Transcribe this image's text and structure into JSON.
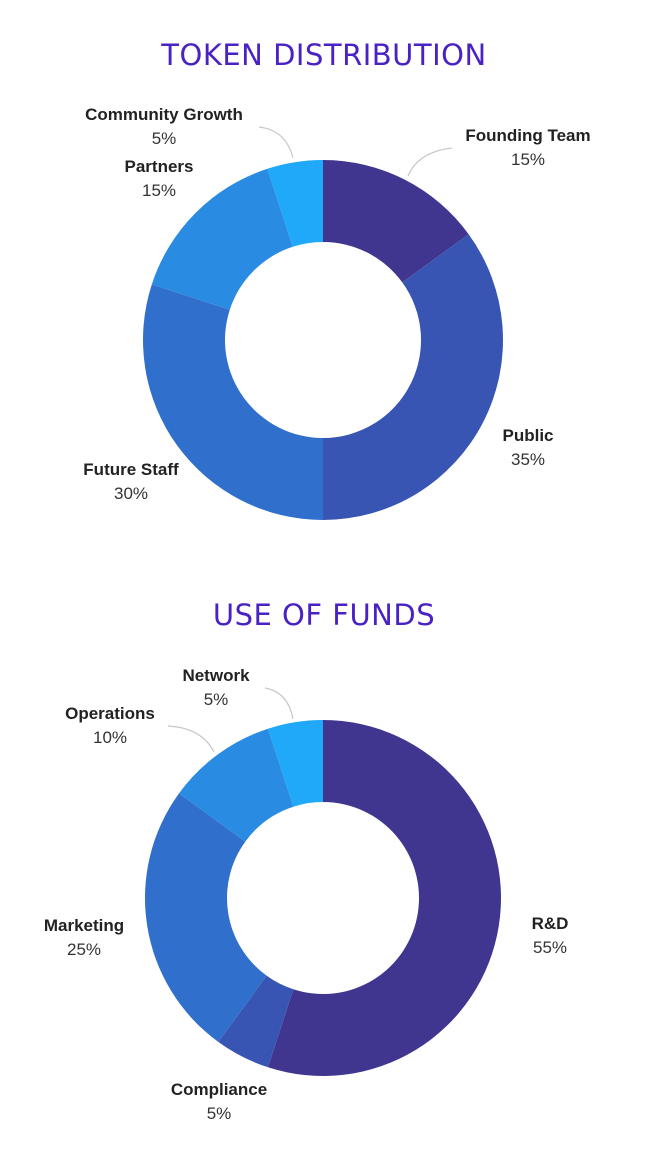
{
  "colors": {
    "title": "#4a22c4"
  },
  "chart_data": [
    {
      "type": "pie",
      "title": "TOKEN DISTRIBUTION",
      "labels": [
        "Founding Team",
        "Public",
        "Future Staff",
        "Partners",
        "Community Growth"
      ],
      "values": [
        15,
        35,
        30,
        15,
        5
      ],
      "value_labels": [
        "15%",
        "35%",
        "30%",
        "15%",
        "5%"
      ],
      "colors": [
        "#41368f",
        "#3955b3",
        "#3070cc",
        "#2a8be2",
        "#20a9f8"
      ],
      "donut": true
    },
    {
      "type": "pie",
      "title": "USE OF FUNDS",
      "labels": [
        "R&D",
        "Compliance",
        "Marketing",
        "Operations",
        "Network"
      ],
      "values": [
        55,
        5,
        25,
        10,
        5
      ],
      "value_labels": [
        "55%",
        "5%",
        "25%",
        "10%",
        "5%"
      ],
      "colors": [
        "#41368f",
        "#3955b3",
        "#3070cc",
        "#2a8be2",
        "#20a9f8"
      ],
      "donut": true
    }
  ]
}
